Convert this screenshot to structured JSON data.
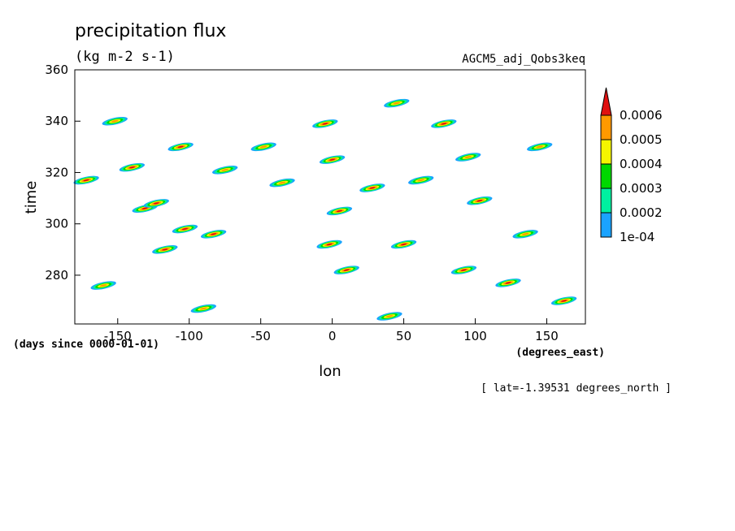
{
  "chart_data": {
    "type": "heatmap",
    "title": "precipitation flux",
    "units": "(kg m-2 s-1)",
    "dataset": "AGCM5_adj_Qobs3keq",
    "xlabel": "lon",
    "ylabel": "time",
    "x_units": "(degrees_east)",
    "y_units": "(days since 0000-01-01)",
    "footnote": "[ lat=-1.39531 degrees_north ]",
    "xlim": [
      -180,
      177
    ],
    "ylim": [
      261,
      360
    ],
    "x_ticks": [
      -150,
      -100,
      -50,
      0,
      50,
      100,
      150
    ],
    "y_ticks": [
      280,
      300,
      320,
      340,
      360
    ],
    "x_tick_labels": [
      "-150",
      "-100",
      "-50",
      "0",
      "50",
      "100",
      "150"
    ],
    "y_tick_labels": [
      "280",
      "300",
      "320",
      "340",
      "360"
    ],
    "legend": {
      "placement": "right",
      "levels": [
        0.0001,
        0.0002,
        0.0003,
        0.0004,
        0.0005,
        0.0006
      ],
      "labels": [
        "1e-04",
        "0.0002",
        "0.0003",
        "0.0004",
        "0.0005",
        "0.0006"
      ],
      "colors": [
        "#1aa3ff",
        "#00f0a0",
        "#00d800",
        "#f5f500",
        "#ff9900",
        "#e01010"
      ],
      "extend": "max"
    },
    "grid": false,
    "cells": [
      {
        "lon": -172,
        "time": 317,
        "level": 5
      },
      {
        "lon": -152,
        "time": 340,
        "level": 4
      },
      {
        "lon": -140,
        "time": 322,
        "level": 5
      },
      {
        "lon": -131,
        "time": 306,
        "level": 5
      },
      {
        "lon": -123,
        "time": 308,
        "level": 5
      },
      {
        "lon": -106,
        "time": 330,
        "level": 5
      },
      {
        "lon": -103,
        "time": 298,
        "level": 5
      },
      {
        "lon": -117,
        "time": 290,
        "level": 5
      },
      {
        "lon": -83,
        "time": 296,
        "level": 5
      },
      {
        "lon": -75,
        "time": 321,
        "level": 4
      },
      {
        "lon": -48,
        "time": 330,
        "level": 4
      },
      {
        "lon": -35,
        "time": 316,
        "level": 4
      },
      {
        "lon": -5,
        "time": 339,
        "level": 5
      },
      {
        "lon": 0,
        "time": 325,
        "level": 5
      },
      {
        "lon": -2,
        "time": 292,
        "level": 5
      },
      {
        "lon": 5,
        "time": 305,
        "level": 5
      },
      {
        "lon": 10,
        "time": 282,
        "level": 5
      },
      {
        "lon": 28,
        "time": 314,
        "level": 5
      },
      {
        "lon": 45,
        "time": 347,
        "level": 4
      },
      {
        "lon": 50,
        "time": 292,
        "level": 5
      },
      {
        "lon": 62,
        "time": 317,
        "level": 4
      },
      {
        "lon": 78,
        "time": 339,
        "level": 5
      },
      {
        "lon": 95,
        "time": 326,
        "level": 4
      },
      {
        "lon": 103,
        "time": 309,
        "level": 5
      },
      {
        "lon": 92,
        "time": 282,
        "level": 5
      },
      {
        "lon": 123,
        "time": 277,
        "level": 5
      },
      {
        "lon": 135,
        "time": 296,
        "level": 4
      },
      {
        "lon": 162,
        "time": 270,
        "level": 5
      },
      {
        "lon": 145,
        "time": 330,
        "level": 4
      },
      {
        "lon": -160,
        "time": 276,
        "level": 4
      },
      {
        "lon": -90,
        "time": 267,
        "level": 4
      },
      {
        "lon": 40,
        "time": 264,
        "level": 4
      }
    ]
  }
}
